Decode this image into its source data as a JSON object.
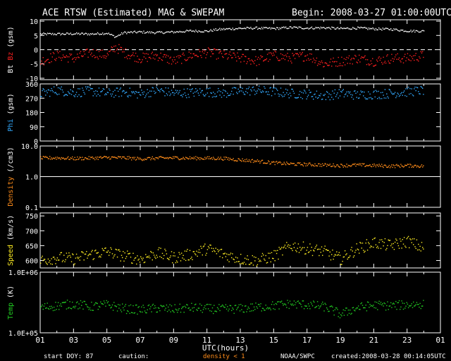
{
  "header": {
    "title": "ACE RTSW (Estimated) MAG & SWEPAM",
    "begin": "Begin: 2008-03-27 01:00:00UTC"
  },
  "footer": {
    "start_doy": "start DOY:  87",
    "caution_label": "caution:",
    "caution_value": "density < 1",
    "source": "NOAA/SWPC",
    "created": "created:2008-03-28 00:14:05UTC"
  },
  "colors": {
    "background": "#000000",
    "axes": "#ffffff",
    "bt": "#ffffff",
    "bz": "#ff2020",
    "phi": "#33aaff",
    "density": "#ff8c1a",
    "speed": "#ffee22",
    "temp": "#22cc22",
    "caution": "#ff8c1a"
  },
  "chart_data": [
    {
      "type": "scatter",
      "panel": "mag",
      "ylabel_parts": [
        "Bt",
        "Bz",
        "(gsm)"
      ],
      "yticks": [
        10,
        5,
        0,
        -5,
        -10
      ],
      "ylim": [
        -10.5,
        10.5
      ],
      "zero_line": true,
      "series": [
        {
          "name": "Bt",
          "x": [
            1,
            2,
            3,
            4,
            5,
            5.5,
            6,
            7,
            8,
            9,
            10,
            11,
            11.5,
            12,
            13,
            14,
            15,
            16,
            17,
            18,
            19,
            20,
            21,
            22,
            23,
            24
          ],
          "values": [
            5.5,
            5.5,
            5.6,
            5.5,
            5.8,
            4.5,
            6.0,
            6.2,
            6.0,
            6.2,
            6.6,
            6.5,
            7.0,
            7.2,
            7.5,
            7.6,
            7.4,
            7.8,
            7.6,
            7.7,
            7.4,
            7.6,
            7.3,
            7.2,
            6.6,
            6.5
          ]
        },
        {
          "name": "Bz",
          "x": [
            1,
            2,
            3,
            4,
            5,
            5.5,
            6,
            7,
            8,
            9,
            10,
            11,
            12,
            13,
            14,
            15,
            16,
            17,
            18,
            19,
            20,
            21,
            22,
            23,
            24
          ],
          "values": [
            -4,
            -2,
            -3,
            -1,
            -2,
            1,
            -1,
            -3,
            -2,
            -4,
            -2,
            -1,
            -2,
            -3,
            -4,
            -2,
            -3,
            -2,
            -5,
            -4,
            -3,
            -4,
            -3,
            -3,
            -2
          ]
        }
      ]
    },
    {
      "type": "scatter",
      "panel": "phi",
      "ylabel": "Phi (gsm)",
      "yticks": [
        360,
        270,
        180,
        90,
        0
      ],
      "ylim": [
        0,
        360
      ],
      "series": [
        {
          "name": "Phi",
          "x": [
            1,
            2,
            3,
            4,
            5,
            6,
            7,
            8,
            9,
            10,
            11,
            12,
            13,
            14,
            15,
            16,
            17,
            18,
            19,
            20,
            21,
            22,
            23,
            24
          ],
          "values": [
            300,
            320,
            305,
            315,
            300,
            310,
            295,
            320,
            300,
            305,
            310,
            300,
            315,
            320,
            310,
            300,
            295,
            285,
            300,
            290,
            295,
            300,
            310,
            320
          ]
        }
      ]
    },
    {
      "type": "scatter",
      "panel": "density",
      "ylabel": "Density (/cm3)",
      "yticks": [
        10.0,
        1.0,
        0.1
      ],
      "yscale": "log",
      "ylim": [
        0.1,
        10
      ],
      "reference_line": 1.0,
      "series": [
        {
          "name": "Density",
          "x": [
            1,
            2,
            3,
            4,
            5,
            6,
            7,
            8,
            9,
            10,
            11,
            12,
            13,
            14,
            15,
            16,
            17,
            18,
            19,
            20,
            21,
            22,
            23,
            24
          ],
          "values": [
            4.0,
            4.1,
            3.9,
            4.0,
            4.2,
            4.1,
            3.8,
            4.0,
            4.1,
            4.0,
            4.0,
            3.9,
            3.5,
            3.2,
            2.8,
            2.6,
            2.5,
            2.4,
            2.3,
            2.4,
            2.3,
            2.2,
            2.3,
            2.2
          ]
        }
      ]
    },
    {
      "type": "scatter",
      "panel": "speed",
      "ylabel": "Speed (km/s)",
      "yticks": [
        750,
        700,
        650,
        600
      ],
      "ylim": [
        575,
        760
      ],
      "series": [
        {
          "name": "Speed",
          "x": [
            1,
            2,
            3,
            4,
            5,
            6,
            7,
            8,
            9,
            10,
            11,
            12,
            13,
            14,
            15,
            16,
            17,
            18,
            19,
            20,
            21,
            22,
            23,
            24
          ],
          "values": [
            600,
            610,
            605,
            620,
            630,
            615,
            605,
            625,
            610,
            620,
            640,
            620,
            605,
            600,
            615,
            650,
            640,
            630,
            605,
            640,
            660,
            650,
            665,
            640
          ]
        }
      ]
    },
    {
      "type": "scatter",
      "panel": "temp",
      "ylabel": "Temp (K)",
      "yticks_labels": [
        "1.0E+06",
        "1.0E+05"
      ],
      "yscale": "log",
      "ylim": [
        100000,
        1000000
      ],
      "series": [
        {
          "name": "Temp",
          "x": [
            1,
            2,
            3,
            4,
            5,
            6,
            7,
            8,
            9,
            10,
            11,
            12,
            13,
            14,
            15,
            16,
            17,
            18,
            19,
            20,
            21,
            22,
            23,
            24
          ],
          "values": [
            260000,
            280000,
            300000,
            270000,
            290000,
            250000,
            240000,
            255000,
            245000,
            260000,
            250000,
            245000,
            250000,
            265000,
            280000,
            300000,
            290000,
            270000,
            200000,
            260000,
            285000,
            280000,
            290000,
            300000
          ]
        }
      ]
    }
  ],
  "x_axis": {
    "label": "UTC(hours)",
    "ticks": [
      "01",
      "03",
      "05",
      "07",
      "09",
      "11",
      "13",
      "15",
      "17",
      "19",
      "21",
      "23",
      "01"
    ],
    "xlim": [
      1,
      25
    ]
  }
}
